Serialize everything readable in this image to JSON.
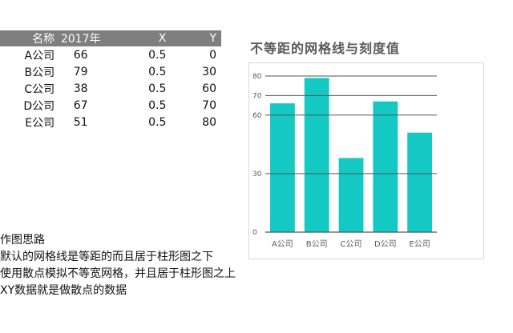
{
  "table": {
    "headers": [
      "名称",
      "2017年",
      "X",
      "Y"
    ],
    "rows": [
      {
        "name": "A公司",
        "value": "66",
        "x": "0.5",
        "y": "0"
      },
      {
        "name": "B公司",
        "value": "79",
        "x": "0.5",
        "y": "30"
      },
      {
        "name": "C公司",
        "value": "38",
        "x": "0.5",
        "y": "60"
      },
      {
        "name": "D公司",
        "value": "67",
        "x": "0.5",
        "y": "70"
      },
      {
        "name": "E公司",
        "value": "51",
        "x": "0.5",
        "y": "80"
      }
    ]
  },
  "notes": [
    "作图思路",
    "默认的网格线是等距的而且居于柱形图之下",
    "使用散点模拟不等宽网格，并且居于柱形图之上",
    "XY数据就是做散点的数据"
  ],
  "chart_data": {
    "type": "bar",
    "title": "不等距的网格线与刻度值",
    "categories": [
      "A公司",
      "B公司",
      "C公司",
      "D公司",
      "E公司"
    ],
    "values": [
      66,
      79,
      38,
      67,
      51
    ],
    "ylim": [
      0,
      80
    ],
    "gridlines": [
      0,
      30,
      60,
      70,
      80
    ],
    "bar_color": "#14c8c4",
    "grid_color": "#555555"
  }
}
